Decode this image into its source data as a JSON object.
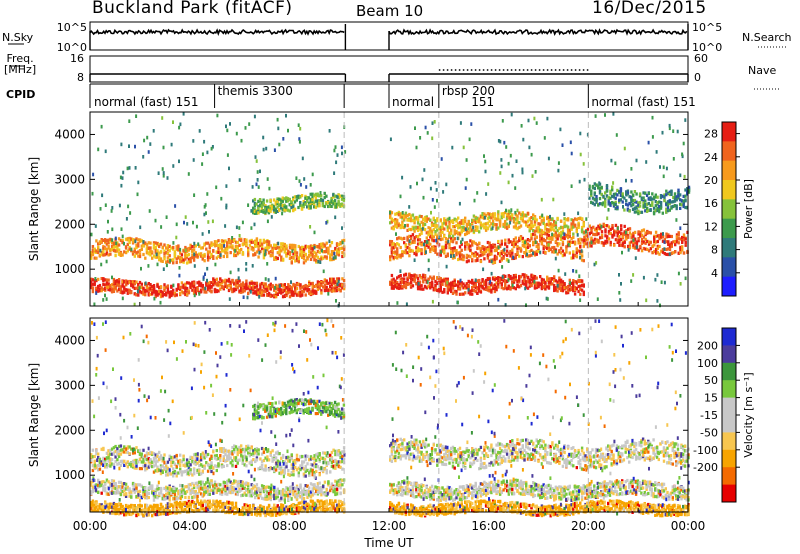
{
  "header": {
    "station": "Buckland Park (fitACF)",
    "beam": "Beam 10",
    "date": "16/Dec/2015"
  },
  "side_labels": {
    "nsky": "N.Sky",
    "freq_top": "Freq.",
    "freq_bottom": "[MHz]",
    "cpid": "CPID",
    "nsearch": "N.Search",
    "nave": "Nave"
  },
  "colors": {
    "power_scale": [
      "#1e1eff",
      "#2a50a8",
      "#2f7a7a",
      "#3c9a4c",
      "#86c23a",
      "#f0c81e",
      "#f79a1c",
      "#f0641e",
      "#e61e14"
    ],
    "velocity_scale": [
      "#e60000",
      "#f46a00",
      "#f7a400",
      "#f7c650",
      "#c8c8c8",
      "#c8c8c8",
      "#78c83c",
      "#3c963c",
      "#4b3c9c",
      "#1e2ad2"
    ],
    "gridline": "#bbbbbb"
  },
  "chart_data": [
    {
      "type": "line",
      "name": "noise",
      "left_axis": {
        "label": "N.Sky",
        "ticks": [
          "10^5",
          "10^0"
        ]
      },
      "right_axis": {
        "label": "N.Search",
        "ticks": [
          "10^5",
          "10^0"
        ]
      },
      "segments": [
        {
          "x_start": "00:00",
          "x_end": "10:15",
          "level": "high"
        },
        {
          "x_start": "12:00",
          "x_end": "24:00",
          "level": "high"
        }
      ]
    },
    {
      "type": "line",
      "name": "frequency",
      "left_axis": {
        "label": "Freq. [MHz]",
        "ticks": [
          "16",
          "8"
        ]
      },
      "right_axis": {
        "label": "Nave",
        "ticks": [
          "60",
          "0"
        ]
      },
      "segments": [
        {
          "x_start": "00:00",
          "x_end": "10:15"
        },
        {
          "x_start": "12:00",
          "x_end": "24:00"
        }
      ]
    },
    {
      "type": "table",
      "name": "cpid",
      "label": "CPID",
      "modes": [
        {
          "text": "normal (fast) 151",
          "start": "00:00",
          "end": "05:00"
        },
        {
          "text": "themis 3300",
          "start": "05:00",
          "end": "10:15"
        },
        {
          "text": "normal",
          "start": "12:00",
          "end": "14:00"
        },
        {
          "text": "rbsp 200",
          "start": "14:00",
          "end": "20:00"
        },
        {
          "text": "151",
          "start": "14:00",
          "end": "20:00"
        },
        {
          "text": "normal (fast) 151",
          "start": "20:00",
          "end": "24:00"
        }
      ]
    },
    {
      "type": "heatmap",
      "name": "power",
      "ylabel": "Slant Range [km]",
      "y_ticks": [
        1000,
        2000,
        3000,
        4000
      ],
      "ylim": [
        180,
        4500
      ],
      "colorbar": {
        "label": "Power [dB]",
        "ticks": [
          4,
          8,
          12,
          16,
          20,
          24,
          28
        ],
        "range": [
          0,
          30
        ]
      },
      "bands": [
        {
          "t": [
            0,
            10.2
          ],
          "r_center": 1450,
          "r_width": 250,
          "value": 22
        },
        {
          "t": [
            0,
            10.2
          ],
          "r_center": 620,
          "r_width": 180,
          "value": 27
        },
        {
          "t": [
            6.5,
            10.2
          ],
          "r_center": 2500,
          "r_width": 200,
          "value": 14
        },
        {
          "t": [
            12,
            19.8
          ],
          "r_center": 1500,
          "r_width": 300,
          "value": 24
        },
        {
          "t": [
            12,
            19.8
          ],
          "r_center": 700,
          "r_width": 200,
          "value": 28
        },
        {
          "t": [
            12,
            19.8
          ],
          "r_center": 2050,
          "r_width": 250,
          "value": 20
        },
        {
          "t": [
            19.8,
            24
          ],
          "r_center": 1700,
          "r_width": 300,
          "value": 26
        },
        {
          "t": [
            20,
            24
          ],
          "r_center": 2600,
          "r_width": 300,
          "value": 10
        }
      ]
    },
    {
      "type": "heatmap",
      "name": "velocity",
      "ylabel": "Slant Range [km]",
      "xlabel": "Time UT",
      "x_ticks": [
        "00:00",
        "04:00",
        "08:00",
        "12:00",
        "16:00",
        "20:00",
        "00:00"
      ],
      "y_ticks": [
        1000,
        2000,
        3000,
        4000
      ],
      "ylim": [
        180,
        4500
      ],
      "colorbar": {
        "label": "Velocity [m s⁻¹]",
        "ticks": [
          200,
          100,
          50,
          15,
          -15,
          -50,
          -100,
          -200
        ]
      },
      "bands": [
        {
          "t": [
            0,
            10.2
          ],
          "r_center": 1350,
          "r_width": 300,
          "value": 0
        },
        {
          "t": [
            0,
            10.2
          ],
          "r_center": 700,
          "r_width": 200,
          "value": 0
        },
        {
          "t": [
            0,
            10.2
          ],
          "r_center": 300,
          "r_width": 150,
          "value": -60
        },
        {
          "t": [
            6.5,
            10.2
          ],
          "r_center": 2500,
          "r_width": 200,
          "value": 40
        },
        {
          "t": [
            12,
            24
          ],
          "r_center": 1500,
          "r_width": 300,
          "value": 0
        },
        {
          "t": [
            12,
            24
          ],
          "r_center": 700,
          "r_width": 200,
          "value": 0
        },
        {
          "t": [
            12,
            24
          ],
          "r_center": 300,
          "r_width": 150,
          "value": -60
        }
      ]
    }
  ]
}
